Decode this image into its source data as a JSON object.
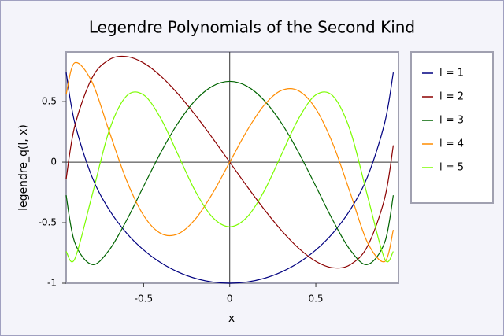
{
  "chart_data": {
    "type": "line",
    "title": "Legendre Polynomials of the Second Kind",
    "x_label": "x",
    "y_label": "legendre_q(l, x)",
    "x": [
      -0.95,
      -0.9,
      -0.8,
      -0.7,
      -0.6,
      -0.5,
      -0.4,
      -0.3,
      -0.2,
      -0.1,
      0,
      0.1,
      0.2,
      0.3,
      0.4,
      0.5,
      0.6,
      0.7,
      0.8,
      0.9,
      0.95
    ],
    "series": [
      {
        "name": "l = 1",
        "color": "#000080",
        "values": [
          0.74019,
          0.325,
          -0.12111,
          -0.39289,
          -0.58411,
          -0.72535,
          -0.83054,
          -0.90714,
          -0.95945,
          -0.98997,
          -1,
          -0.98997,
          -0.95945,
          -0.90714,
          -0.83054,
          -0.72535,
          -0.58411,
          -0.39289,
          -0.12111,
          0.325,
          0.74019
        ]
      },
      {
        "name": "l = 2",
        "color": "#8b0000",
        "values": [
          -0.13888,
          0.29736,
          0.69464,
          0.84618,
          0.87227,
          0.81866,
          0.71015,
          0.56297,
          0.3892,
          0.19867,
          0,
          -0.19867,
          -0.3892,
          -0.56297,
          -0.71015,
          -0.81866,
          -0.87227,
          -0.84618,
          -0.69464,
          -0.29736,
          0.13888
        ]
      },
      {
        "name": "l = 3",
        "color": "#006400",
        "values": [
          -0.27355,
          -0.66271,
          -0.84544,
          -0.72529,
          -0.48286,
          -0.19865,
          0.08026,
          0.32328,
          0.50991,
          0.62707,
          0.66667,
          0.62707,
          0.50991,
          0.32328,
          0.08026,
          -0.19865,
          -0.48286,
          -0.72529,
          -0.84544,
          -0.66271,
          -0.27355
        ]
      },
      {
        "name": "l = 4",
        "color": "#ff8c00",
        "values": [
          0.55897,
          0.82074,
          0.66265,
          0.25384,
          -0.14719,
          -0.44018,
          -0.5888,
          -0.59195,
          -0.47036,
          -0.2587,
          0,
          0.2587,
          0.47036,
          0.59195,
          0.5888,
          0.44018,
          0.14719,
          -0.25384,
          -0.66265,
          -0.82074,
          -0.55897
        ]
      },
      {
        "name": "l = 5",
        "color": "#7cfc00",
        "values": [
          -0.73698,
          -0.79944,
          -0.27785,
          0.26039,
          0.54527,
          0.55508,
          0.35973,
          0.06104,
          -0.23859,
          -0.45493,
          -0.53333,
          -0.45493,
          -0.23859,
          0.06104,
          0.35973,
          0.55508,
          0.54527,
          0.26039,
          -0.27785,
          -0.79944,
          -0.73698
        ]
      }
    ],
    "xlim": [
      -0.95,
      0.98
    ],
    "ylim": [
      -1,
      0.91
    ],
    "xticks": [
      -0.5,
      0,
      0.5
    ],
    "yticks": [
      -1,
      -0.5,
      0,
      0.5
    ],
    "legend": "right"
  }
}
